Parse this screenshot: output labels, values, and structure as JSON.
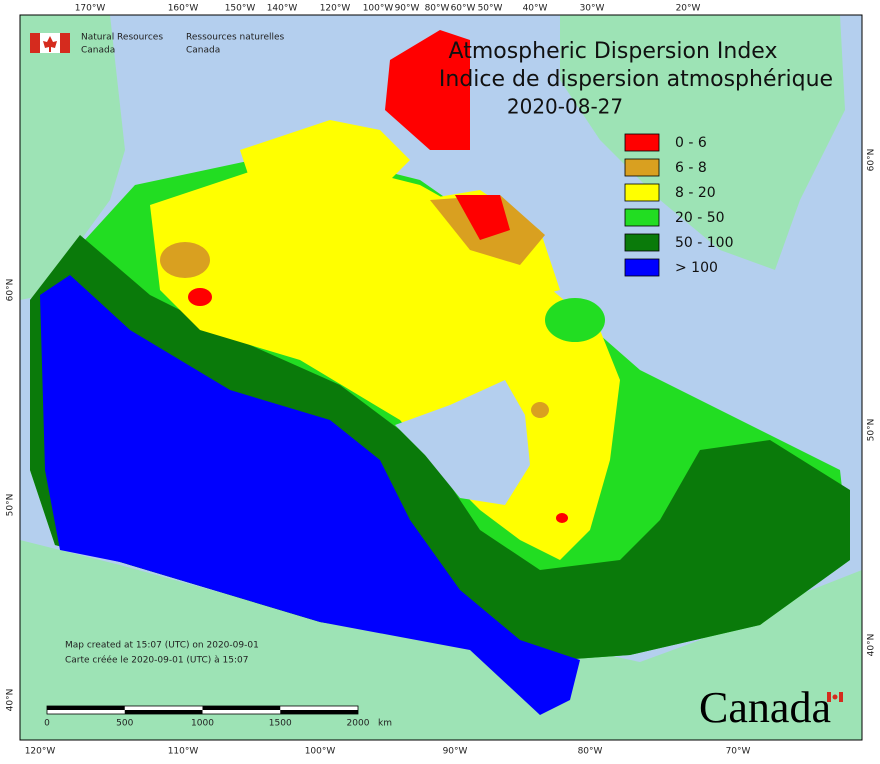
{
  "header": {
    "org_en": [
      "Natural Resources",
      "Canada"
    ],
    "org_fr": [
      "Ressources naturelles",
      "Canada"
    ]
  },
  "title": {
    "en": "Atmospheric Dispersion Index",
    "fr": "Indice de dispersion atmosphérique",
    "date": "2020-08-27"
  },
  "legend": [
    {
      "label": "0 - 6",
      "color": "#ff0000"
    },
    {
      "label": "6 - 8",
      "color": "#d9a020"
    },
    {
      "label": "8 - 20",
      "color": "#ffff00"
    },
    {
      "label": "20 - 50",
      "color": "#22dd22"
    },
    {
      "label": "50 - 100",
      "color": "#0a7a0a"
    },
    {
      "label": "> 100",
      "color": "#0000ff"
    }
  ],
  "graticule": {
    "top": [
      "170°W",
      "160°W",
      "150°W",
      "140°W",
      "120°W",
      "100°W",
      "90°W",
      "80°W",
      "60°W",
      "50°W",
      "40°W",
      "30°W",
      "20°W"
    ],
    "bottom": [
      "120°W",
      "110°W",
      "100°W",
      "90°W",
      "80°W",
      "70°W"
    ],
    "left": [
      "60°N",
      "50°N",
      "40°N"
    ],
    "right": [
      "60°N",
      "50°N",
      "40°N"
    ]
  },
  "notes": [
    "Map created at 15:07 (UTC) on 2020-09-01",
    "Carte créée le 2020-09-01 (UTC) à 15:07"
  ],
  "scale_bar": {
    "labels": [
      "0",
      "500",
      "1000",
      "1500",
      "2000"
    ],
    "unit": "km"
  },
  "wordmark": "Canada"
}
